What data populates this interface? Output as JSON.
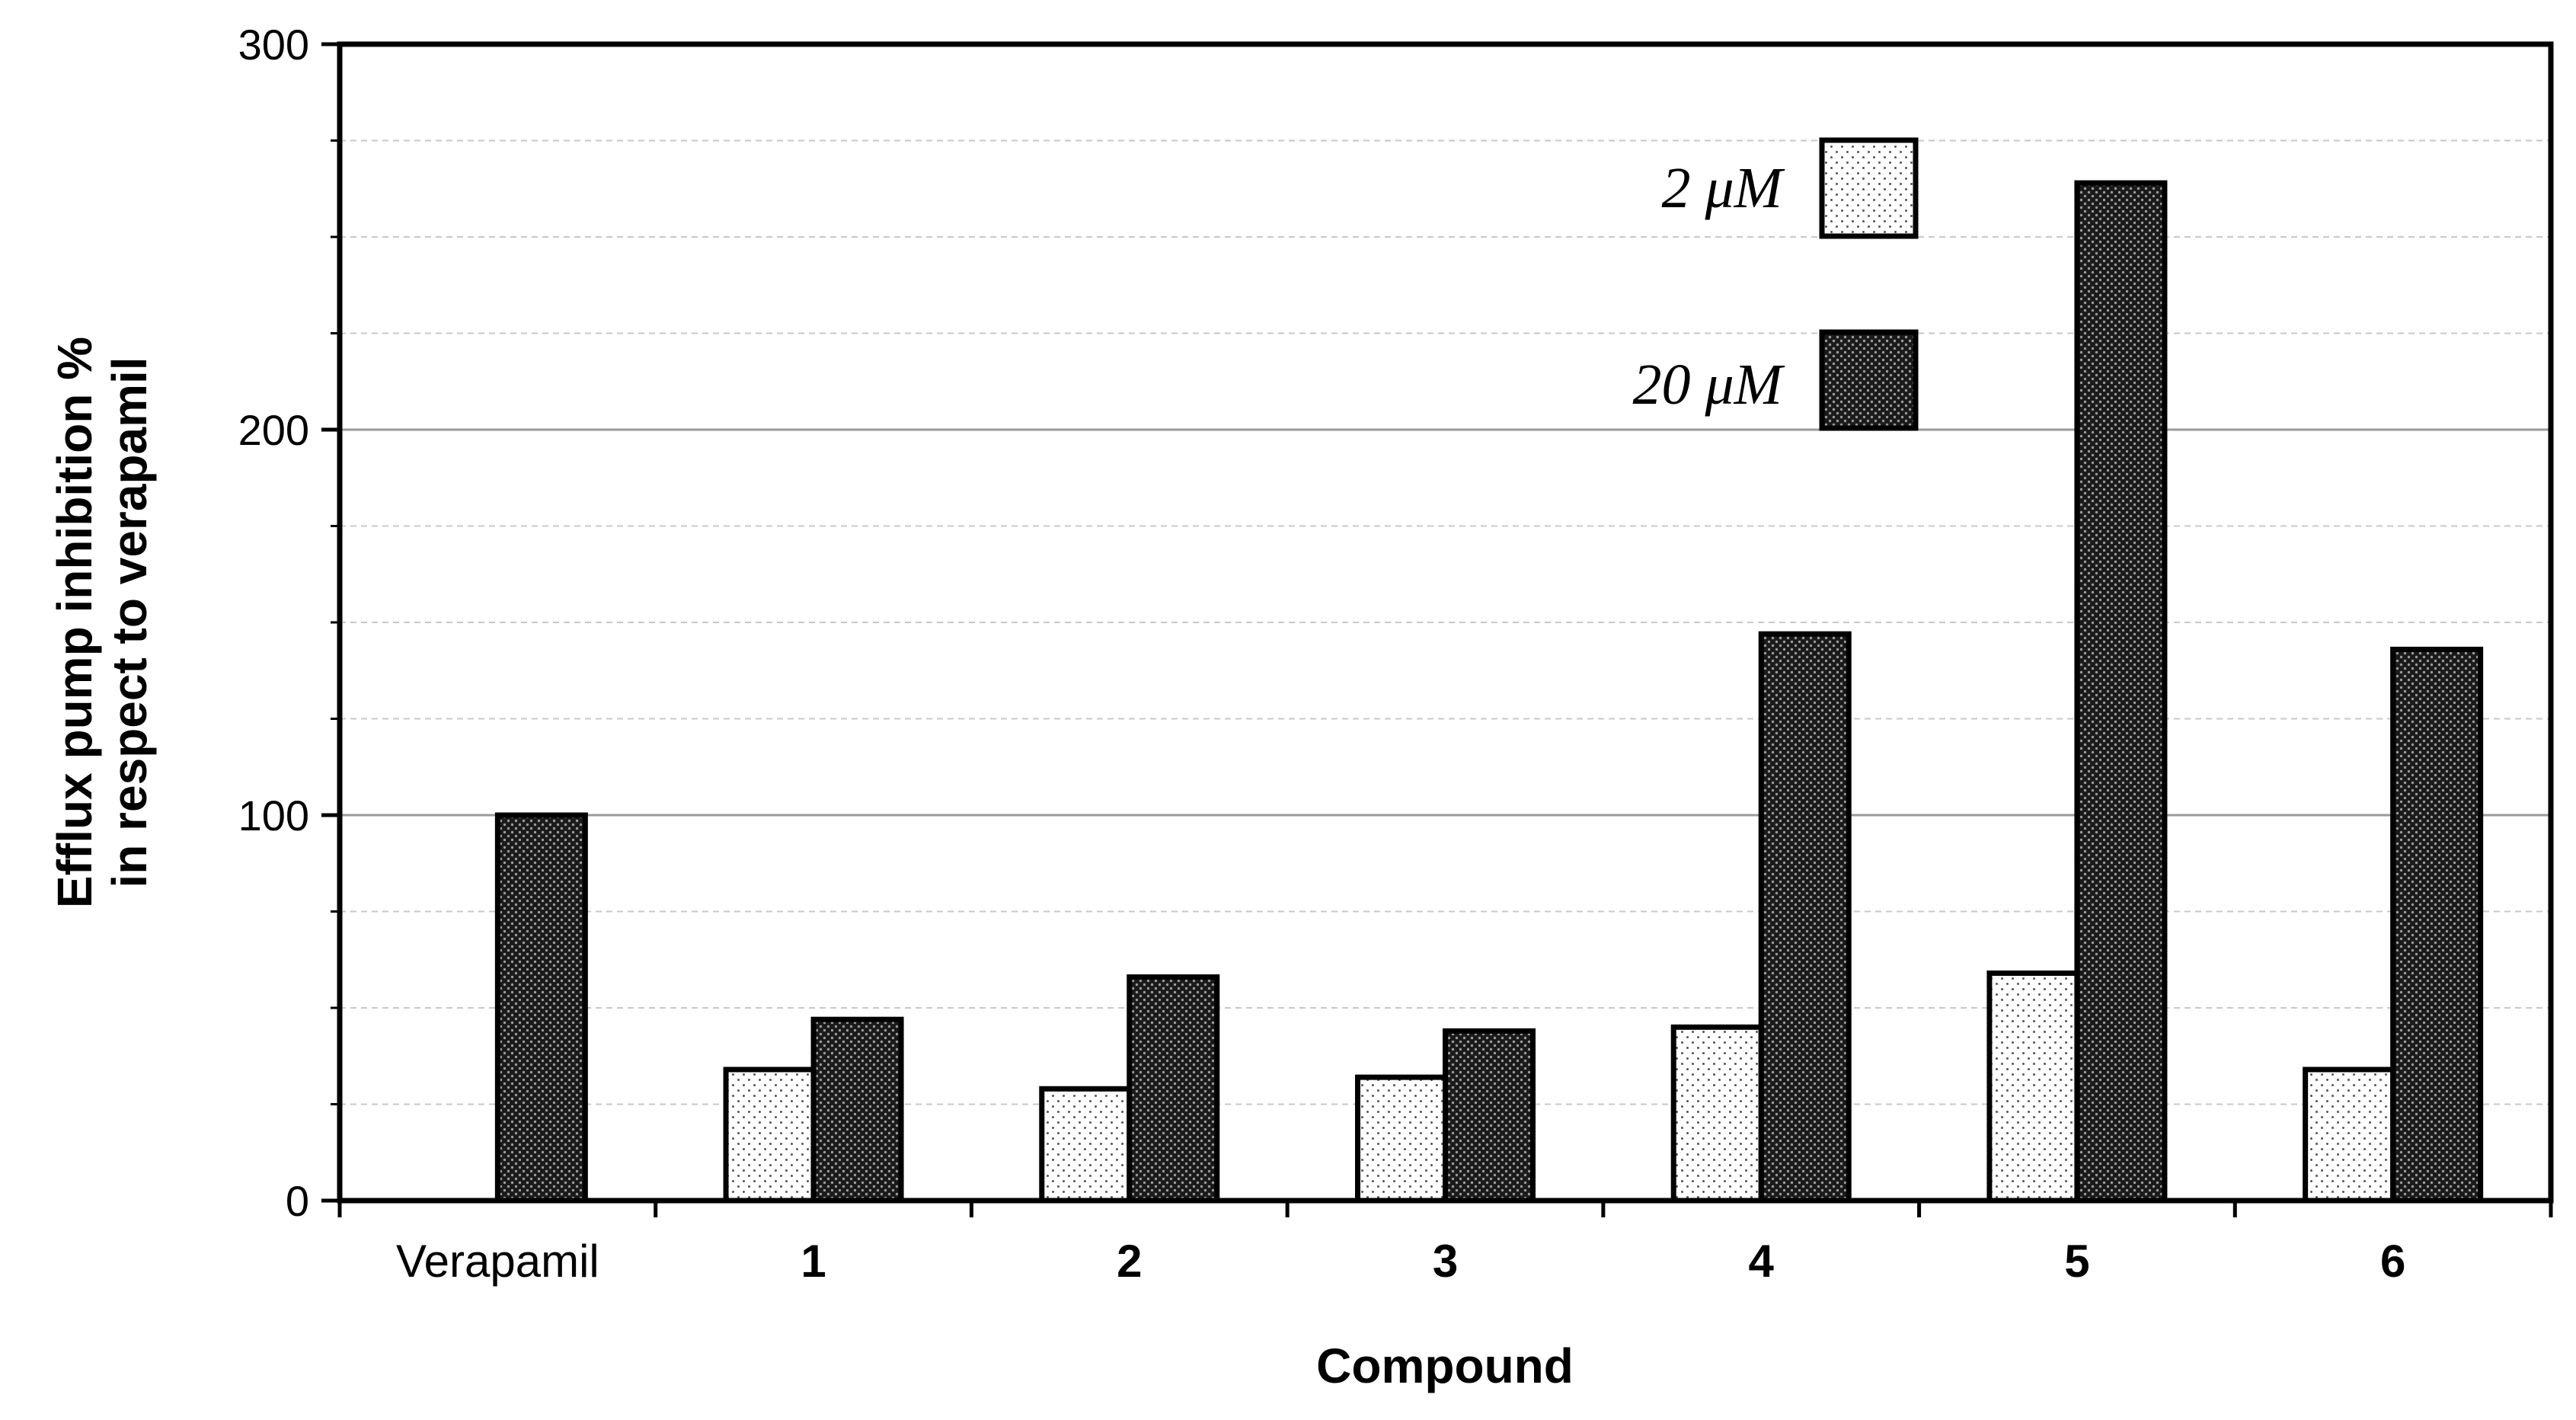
{
  "chart_data": {
    "type": "bar",
    "title": "",
    "xlabel": "Compound",
    "ylabel_lines": [
      "Efflux pump inhibition %",
      "in respect to verapamil"
    ],
    "ylim": [
      0,
      300
    ],
    "y_ticks": [
      "0",
      "100",
      "200",
      "300"
    ],
    "grid": true,
    "legend_position": "top-right",
    "categories": [
      "Verapamil",
      "1",
      "2",
      "3",
      "4",
      "5",
      "6"
    ],
    "bold_categories": [
      "1",
      "2",
      "3",
      "4",
      "5",
      "6"
    ],
    "series": [
      {
        "name": "2 μM",
        "pattern": "light-dotted",
        "color": "#ffffff",
        "values": [
          null,
          34,
          29,
          32,
          45,
          59,
          34
        ]
      },
      {
        "name": "20 μM",
        "pattern": "dark-dotted",
        "color": "#2b2b2b",
        "values": [
          100,
          47,
          58,
          44,
          147,
          264,
          143
        ]
      }
    ]
  }
}
